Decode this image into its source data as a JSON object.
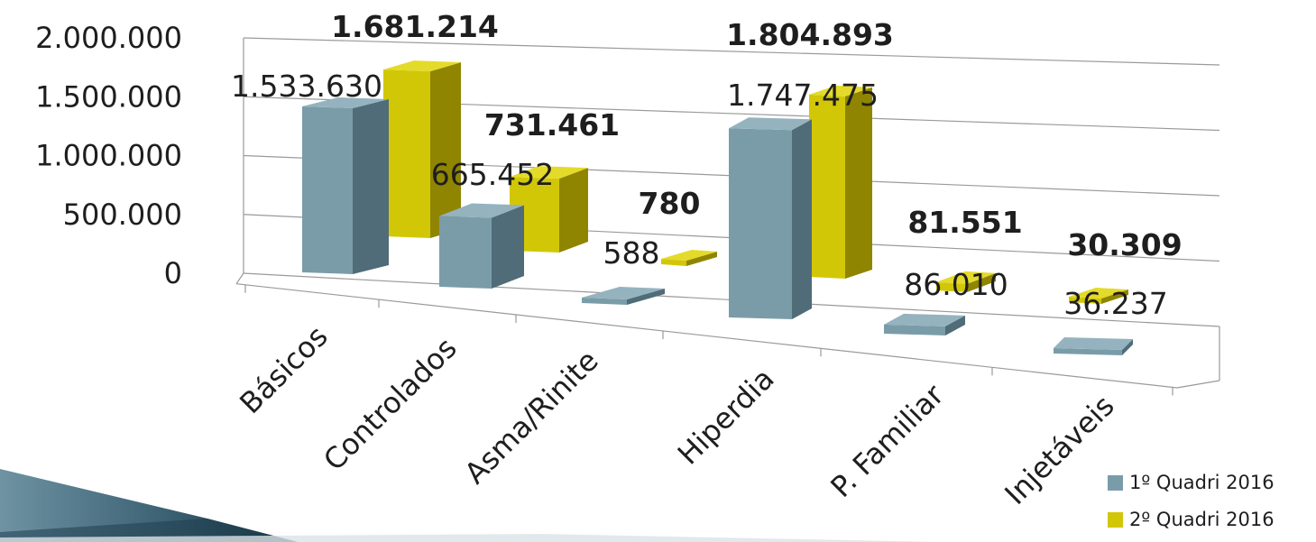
{
  "chart_data": {
    "type": "bar",
    "categories": [
      "Básicos",
      "Controlados",
      "Asma/Rinite",
      "Hiperdia",
      "P. Familiar",
      "Injetáveis"
    ],
    "series": [
      {
        "name": "1º Quadri 2016",
        "values": [
          1533630,
          665452,
          588,
          1747475,
          86010,
          36237
        ],
        "labels": [
          "1.533.630",
          "665.452",
          "588",
          "1.747.475",
          "86.010",
          "36.237"
        ],
        "color": "#7A9CA8"
      },
      {
        "name": "2º Quadri 2016",
        "values": [
          1681214,
          731461,
          780,
          1804893,
          81551,
          30309
        ],
        "labels": [
          "1.681.214",
          "731.461",
          "780",
          "1.804.893",
          "81.551",
          "30.309"
        ],
        "color": "#D2C707"
      }
    ],
    "y_ticks": [
      "0",
      "500.000",
      "1.000.000",
      "1.500.000",
      "2.000.000"
    ],
    "ylim": [
      0,
      2000000
    ],
    "grid": true,
    "legend": "bottom-right",
    "style": "3d-perspective-columns"
  },
  "colors": {
    "series1_front": "#7A9CA8",
    "series1_side": "#4F6C78",
    "series1_top": "#94B3BE",
    "series2_front": "#D2C707",
    "series2_side": "#8F8500",
    "series2_top": "#E4DA2A",
    "grid": "#9A9A9A",
    "text": "#1E1E1E",
    "corner_arrow_dark": "#1F3E4F",
    "corner_arrow_light": "#6E93A3"
  }
}
